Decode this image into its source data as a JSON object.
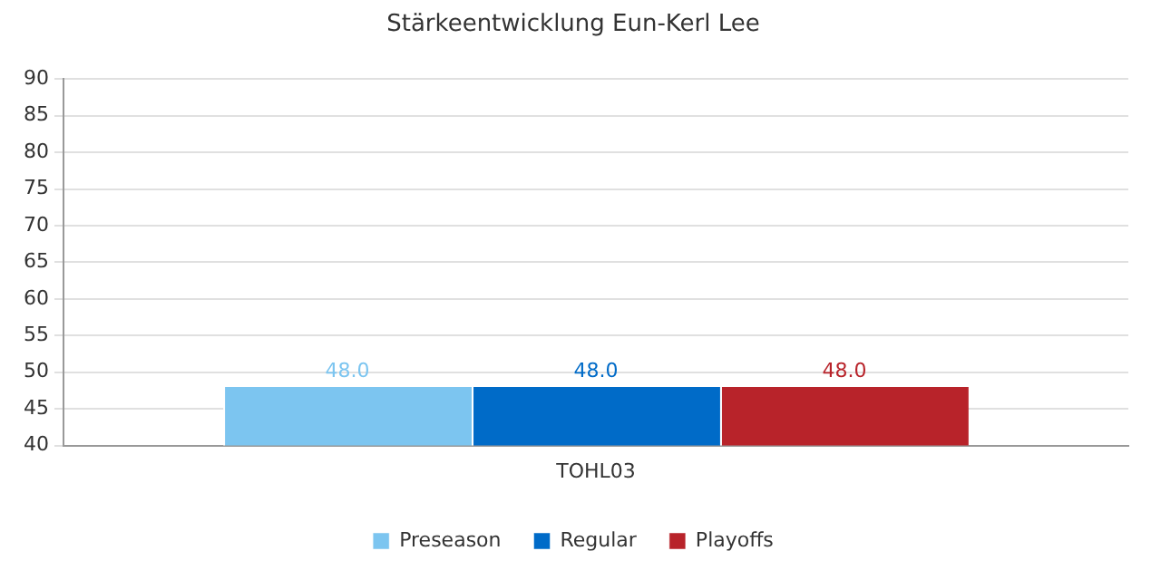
{
  "chart_data": {
    "type": "bar",
    "title": "Stärkeentwicklung Eun-Kerl Lee",
    "categories": [
      "TOHL03"
    ],
    "series": [
      {
        "name": "Preseason",
        "color": "#7cc5f0",
        "values": [
          48
        ],
        "value_labels": [
          "48.0"
        ]
      },
      {
        "name": "Regular",
        "color": "#006bc8",
        "values": [
          48
        ],
        "value_labels": [
          "48.0"
        ]
      },
      {
        "name": "Playoffs",
        "color": "#b8232a",
        "values": [
          48
        ],
        "value_labels": [
          "48.0"
        ]
      }
    ],
    "ylim": [
      40,
      90
    ],
    "yticks": [
      40,
      45,
      50,
      55,
      60,
      65,
      70,
      75,
      80,
      85,
      90
    ],
    "grid": "y",
    "legend": "bottom"
  }
}
